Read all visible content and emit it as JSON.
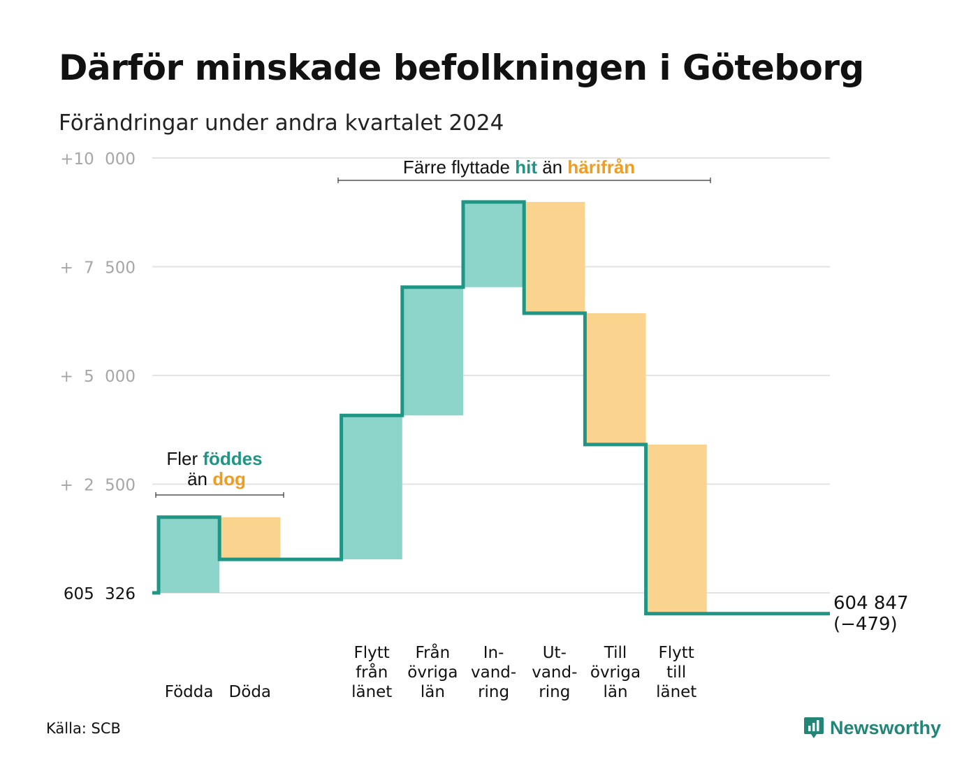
{
  "header": {
    "title": "Därför minskade befolkningen i Göteborg",
    "subtitle": "Förändringar under andra kvartalet 2024"
  },
  "colors": {
    "increase": "#8dd4cb",
    "decrease": "#fad48f",
    "line": "#1f9585",
    "grid": "#e3e3e3",
    "hit": "#1f9585",
    "dog": "#f29c1f"
  },
  "chart_data": {
    "type": "waterfall",
    "start_value": 605326,
    "end_value": 604847,
    "y_axis": {
      "min": 0,
      "max": 10000,
      "ticks": [
        {
          "value": 0,
          "label": "605 326"
        },
        {
          "value": 2500,
          "label": "+ 2 500"
        },
        {
          "value": 5000,
          "label": "+ 5 000"
        },
        {
          "value": 7500,
          "label": "+ 7 500"
        },
        {
          "value": 10000,
          "label": "+10 000"
        }
      ]
    },
    "steps": [
      {
        "category": "Födda",
        "lines": [
          "Födda"
        ],
        "change": 1740,
        "type": "increase"
      },
      {
        "category": "Döda",
        "lines": [
          "Döda"
        ],
        "change": -970,
        "type": "decrease"
      },
      {
        "category": "",
        "lines": [],
        "change": 0,
        "type": "none"
      },
      {
        "category": "Flytt från länet",
        "lines": [
          "Flytt",
          "från",
          "länet"
        ],
        "change": 3310,
        "type": "increase"
      },
      {
        "category": "Från övriga län",
        "lines": [
          "Från",
          "övriga",
          "län"
        ],
        "change": 2950,
        "type": "increase"
      },
      {
        "category": "In-vand-ring",
        "lines": [
          "In-",
          "vand-",
          "ring"
        ],
        "change": 1960,
        "type": "increase"
      },
      {
        "category": "Ut-vand-ring",
        "lines": [
          "Ut-",
          "vand-",
          "ring"
        ],
        "change": -2560,
        "type": "decrease"
      },
      {
        "category": "Till övriga län",
        "lines": [
          "Till",
          "övriga",
          "län"
        ],
        "change": -3020,
        "type": "decrease"
      },
      {
        "category": "Flytt till länet",
        "lines": [
          "Flytt",
          "till",
          "länet"
        ],
        "change": -3889,
        "type": "decrease"
      }
    ],
    "end_label": [
      "604 847",
      "(−479)"
    ],
    "annotations": [
      {
        "text_parts": [
          [
            "Fler ",
            "plain"
          ],
          [
            "föddes",
            "hit"
          ]
        ],
        "text_parts_2": [
          [
            "än ",
            "plain"
          ],
          [
            "dog",
            "dog"
          ]
        ]
      },
      {
        "text_parts": [
          [
            "Färre flyttade ",
            "plain"
          ],
          [
            "hit",
            "hit"
          ],
          [
            " än ",
            "plain"
          ],
          [
            "härifrån",
            "dog"
          ]
        ]
      }
    ]
  },
  "footer": {
    "source": "Källa: SCB",
    "brand": "Newsworthy",
    "brand_icon": "newsworthy-logo-icon"
  }
}
